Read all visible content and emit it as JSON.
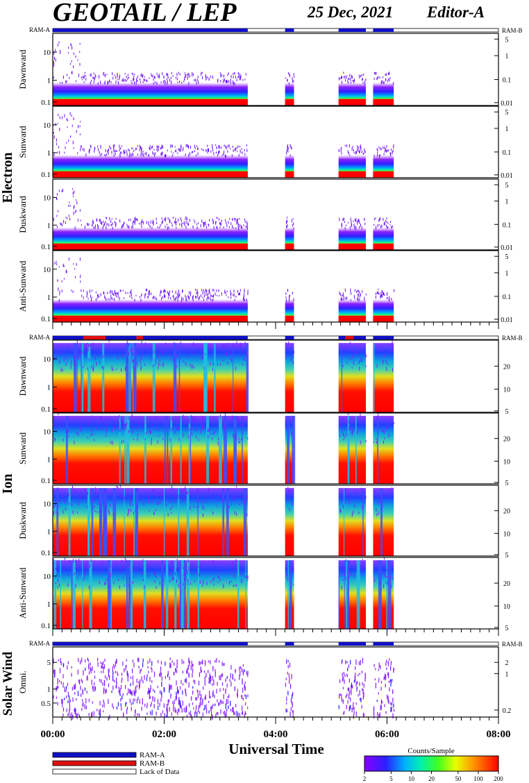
{
  "header": {
    "title": "GEOTAIL / LEP",
    "date": "25 Dec, 2021",
    "editor": "Editor-A"
  },
  "chart_data": {
    "type": "heatmap",
    "title": "GEOTAIL / LEP",
    "xlabel": "Universal Time",
    "xlim": [
      "00:00",
      "08:00"
    ],
    "x_tick_labels": [
      "00:00",
      "02:00",
      "04:00",
      "06:00",
      "08:00"
    ],
    "data_intervals_hours": [
      [
        0.0,
        3.5
      ],
      [
        4.17,
        4.33
      ],
      [
        5.13,
        5.62
      ],
      [
        5.75,
        6.12
      ]
    ],
    "mode_bar_labels": {
      "left": "RAM-A",
      "right": "RAM-B"
    },
    "groups": [
      {
        "name": "Electron",
        "left_ticks": [
          "10",
          "1",
          "0.1"
        ],
        "right_ticks": [
          "5",
          "1",
          "0.1",
          "0.01"
        ],
        "panels": [
          {
            "name": "Dawnward"
          },
          {
            "name": "Sunward"
          },
          {
            "name": "Duskward"
          },
          {
            "name": "Anti-Sunward"
          }
        ]
      },
      {
        "name": "Ion",
        "left_ticks": [
          "10",
          "1",
          "0.1"
        ],
        "right_ticks": [
          "20",
          "10",
          "5"
        ],
        "panels": [
          {
            "name": "Dawnward"
          },
          {
            "name": "Sunward"
          },
          {
            "name": "Duskward"
          },
          {
            "name": "Anti-Sunward"
          }
        ]
      },
      {
        "name": "Solar Wind",
        "left_ticks": [
          "5",
          "1",
          "0.5"
        ],
        "right_ticks": [
          "2",
          "1",
          "0.2"
        ],
        "panels": [
          {
            "name": "Omni."
          }
        ]
      }
    ],
    "legend": {
      "items": [
        "RAM-A",
        "RAM-B",
        "Lack of Data"
      ],
      "colors": [
        "#1010c8",
        "#e01010",
        "#ffffff"
      ]
    },
    "colorbar": {
      "title": "Counts/Sample",
      "ticks": [
        "2",
        "5",
        "10",
        "20",
        "50",
        "100",
        "200"
      ],
      "range": [
        2,
        200
      ],
      "scale": "log"
    }
  }
}
